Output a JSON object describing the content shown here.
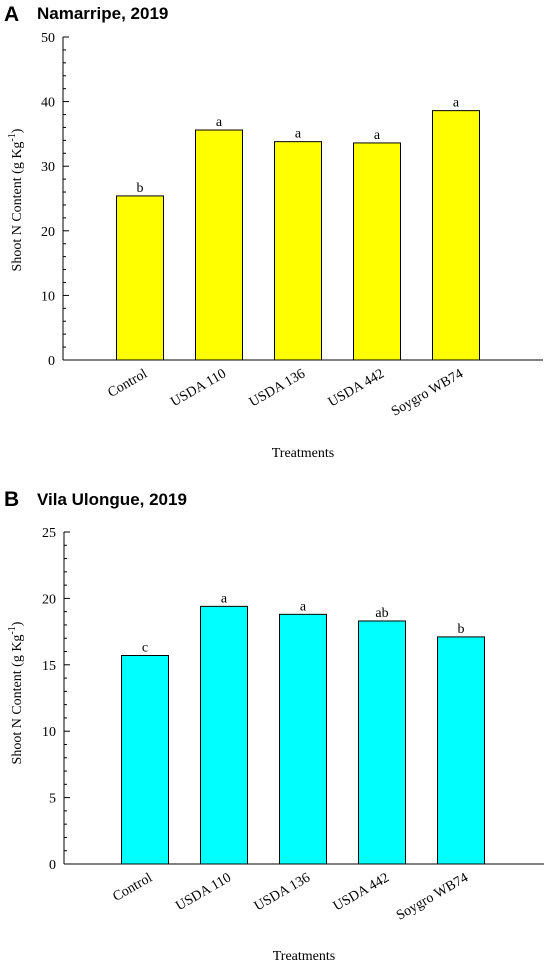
{
  "chart_data": [
    {
      "type": "bar",
      "panel": "A",
      "title": "Namarripe, 2019",
      "xlabel": "Treatments",
      "ylabel": "Shoot N Content (g Kg",
      "ylabel_sup": "-1",
      "ylabel_close": ")",
      "categories": [
        "Control",
        "USDA 110",
        "USDA 136",
        "USDA 442",
        "Soygro WB74"
      ],
      "values": [
        25.4,
        35.6,
        33.8,
        33.6,
        38.6
      ],
      "significance": [
        "b",
        "a",
        "a",
        "a",
        "a"
      ],
      "ylim": [
        0,
        50
      ],
      "yticks": [
        0,
        10,
        20,
        30,
        40,
        50
      ],
      "bar_color": "#ffff00"
    },
    {
      "type": "bar",
      "panel": "B",
      "title": "Vila Ulongue, 2019",
      "xlabel": "Treatments",
      "ylabel": "Shoot N Content (g Kg",
      "ylabel_sup": "-1",
      "ylabel_close": ")",
      "categories": [
        "Control",
        "USDA 110",
        "USDA 136",
        "USDA 442",
        "Soygro WB74"
      ],
      "values": [
        15.7,
        19.4,
        18.8,
        18.3,
        17.1
      ],
      "significance": [
        "c",
        "a",
        "a",
        "ab",
        "b"
      ],
      "ylim": [
        0,
        25
      ],
      "yticks": [
        0,
        5,
        10,
        15,
        20,
        25
      ],
      "bar_color": "#00ffff"
    }
  ]
}
